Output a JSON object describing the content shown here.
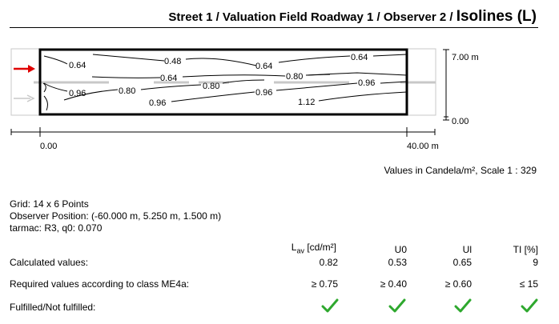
{
  "header": {
    "title_main": "Street 1 / Valuation Field Roadway 1 / Observer 2 / ",
    "title_big": "Isolines (L)"
  },
  "plot": {
    "y_top_label": "7.00 m",
    "y_bottom_label": "0.00",
    "x_left_label": "0.00",
    "x_right_label": "40.00 m",
    "isoline_labels": [
      "0.64",
      "0.48",
      "0.64",
      "0.64",
      "0.96",
      "0.80",
      "0.64",
      "0.80",
      "0.80",
      "0.96",
      "0.96",
      "0.96",
      "1.12"
    ],
    "colors": {
      "observer_arrow": "#e00000",
      "frame": "#000000",
      "guide": "#c8c8c8"
    }
  },
  "scale_note": "Values in Candela/m², Scale 1 : 329",
  "info": {
    "grid": "Grid: 14 x 6 Points",
    "observer": "Observer Position: (-60.000 m, 5.250 m, 1.500 m)",
    "tarmac": "tarmac: R3, q0: 0.070"
  },
  "table": {
    "headers": {
      "lav_main": "L",
      "lav_sub": "av",
      "lav_unit": " [cd/m²]",
      "u0": "U0",
      "ul": "Ul",
      "ti": "TI [%]"
    },
    "rows": [
      {
        "label": "Calculated values:",
        "lav": "0.82",
        "u0": "0.53",
        "ul": "0.65",
        "ti": "9"
      },
      {
        "label": "Required values according to class ME4a:",
        "lav": "≥ 0.75",
        "u0": "≥ 0.40",
        "ul": "≥ 0.60",
        "ti": "≤ 15"
      }
    ],
    "fulfilled_label": "Fulfilled/Not fulfilled:",
    "fulfilled": [
      true,
      true,
      true,
      true
    ],
    "check_color": "#2ea82e"
  }
}
